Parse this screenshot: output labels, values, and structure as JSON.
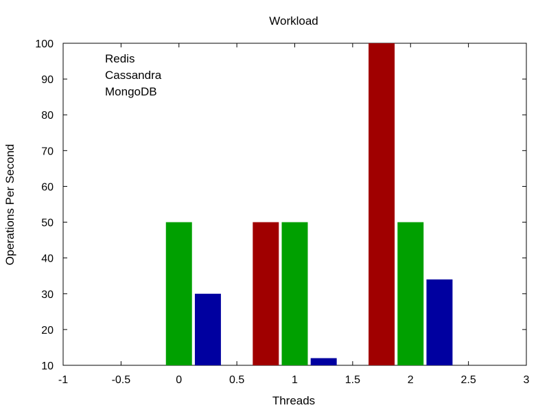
{
  "chart_data": {
    "type": "bar",
    "title": "Workload",
    "xlabel": "Threads",
    "ylabel": "Operations Per Second",
    "xlim": [
      -1,
      3
    ],
    "ylim": [
      10,
      100
    ],
    "x_ticks": [
      "-1",
      "-0.5",
      "0",
      "0.5",
      "1",
      "1.5",
      "2",
      "2.5",
      "3"
    ],
    "y_ticks": [
      "10",
      "20",
      "30",
      "40",
      "50",
      "60",
      "70",
      "80",
      "90",
      "100"
    ],
    "categories": [
      0,
      1,
      2
    ],
    "series": [
      {
        "name": "Redis",
        "color": "#a00000",
        "values": [
          10,
          50,
          100
        ]
      },
      {
        "name": "Cassandra",
        "color": "#00a000",
        "values": [
          50,
          50,
          50
        ]
      },
      {
        "name": "MongoDB",
        "color": "#0000a0",
        "values": [
          30,
          12,
          34
        ]
      }
    ],
    "grid": false,
    "legend_position": "top-left"
  }
}
